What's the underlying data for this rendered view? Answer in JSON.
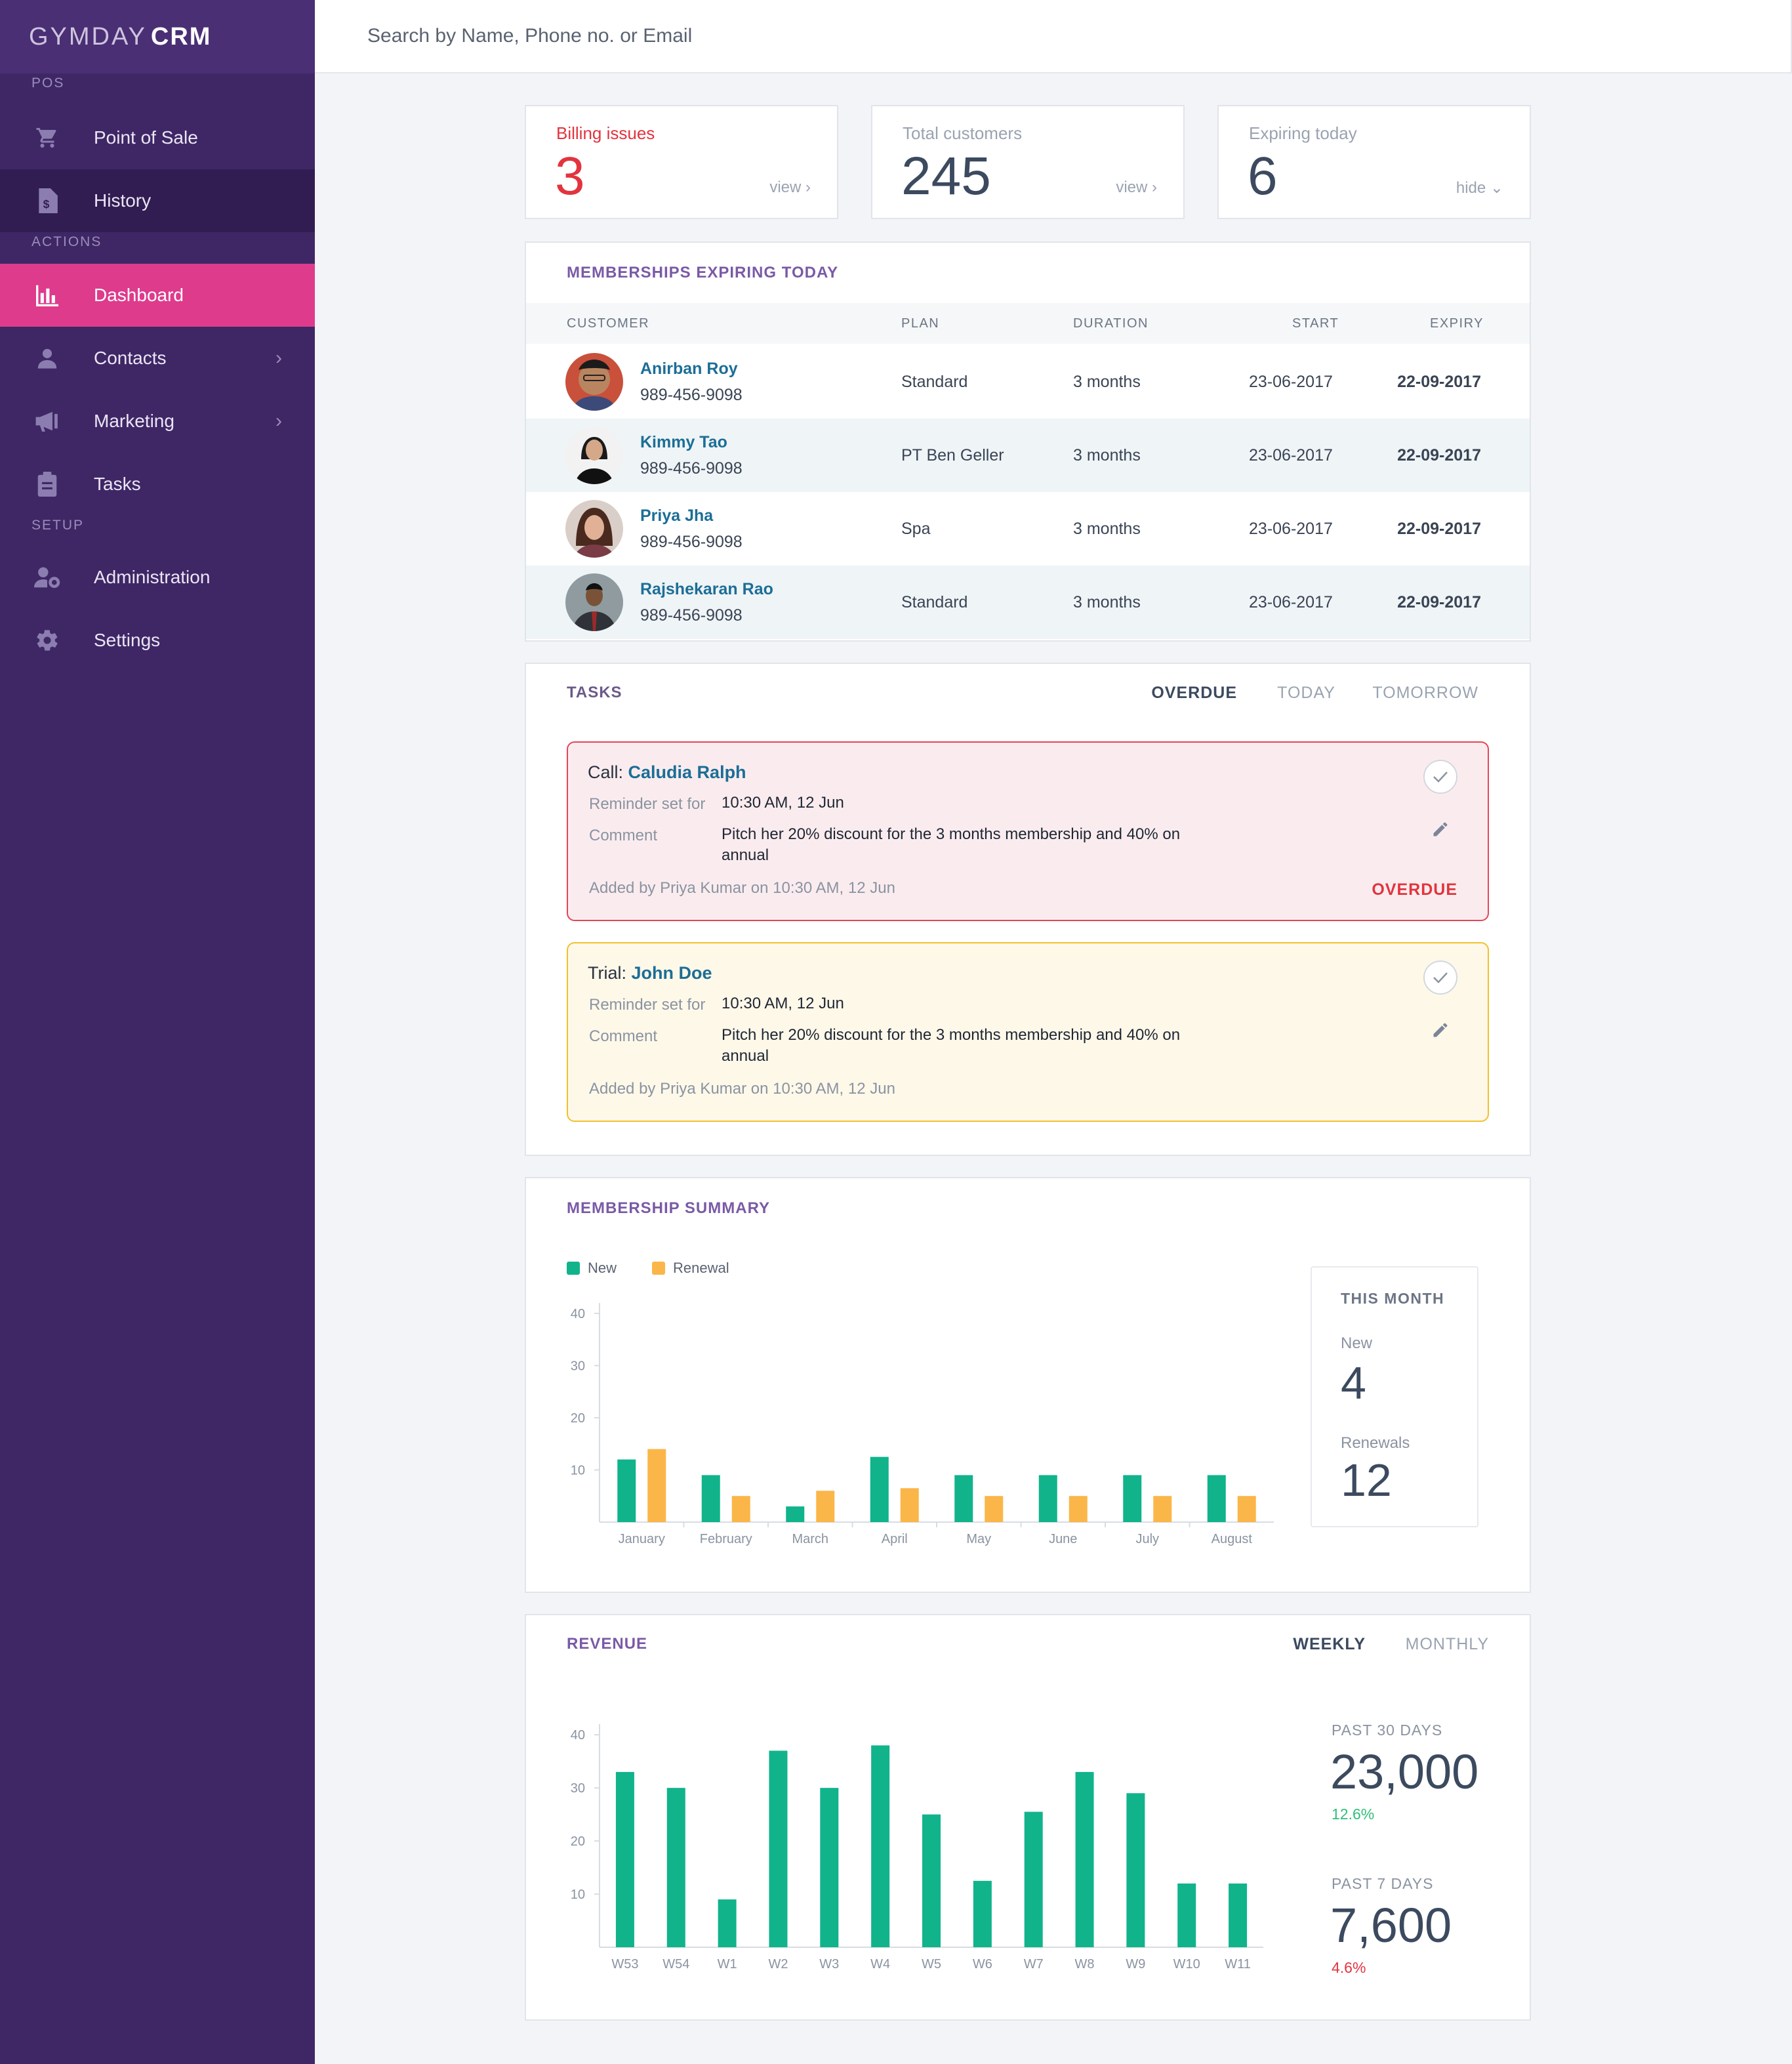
{
  "app": {
    "logo_light": "GYMDAY",
    "logo_bold": "CRM"
  },
  "sidebar": {
    "sections": [
      {
        "label": "POS"
      },
      {
        "label": "ACTIONS"
      },
      {
        "label": "SETUP"
      }
    ],
    "items": [
      {
        "label": "Point of Sale",
        "icon": "cart-icon"
      },
      {
        "label": "History",
        "icon": "receipt-icon"
      },
      {
        "label": "Dashboard",
        "icon": "bar-chart-icon"
      },
      {
        "label": "Contacts",
        "icon": "person-icon"
      },
      {
        "label": "Marketing",
        "icon": "megaphone-icon"
      },
      {
        "label": "Tasks",
        "icon": "clipboard-icon"
      },
      {
        "label": "Administration",
        "icon": "user-gear-icon"
      },
      {
        "label": "Settings",
        "icon": "gear-icon"
      }
    ],
    "active_item": "Dashboard"
  },
  "search": {
    "placeholder": "Search by Name, Phone no. or Email"
  },
  "stats": [
    {
      "label": "Billing issues",
      "value": "3",
      "action": "view",
      "color": "#e2343e"
    },
    {
      "label": "Total customers",
      "value": "245",
      "action": "view"
    },
    {
      "label": "Expiring today",
      "value": "6",
      "action": "hide"
    }
  ],
  "expiring": {
    "title": "MEMBERSHIPS EXPIRING TODAY",
    "columns": [
      "CUSTOMER",
      "PLAN",
      "DURATION",
      "START",
      "EXPIRY"
    ],
    "rows": [
      {
        "name": "Anirban Roy",
        "phone": "989-456-9098",
        "plan": "Standard",
        "duration": "3 months",
        "start": "23-06-2017",
        "expiry": "22-09-2017"
      },
      {
        "name": "Kimmy Tao",
        "phone": "989-456-9098",
        "plan": "PT Ben Geller",
        "duration": "3 months",
        "start": "23-06-2017",
        "expiry": "22-09-2017"
      },
      {
        "name": "Priya Jha",
        "phone": "989-456-9098",
        "plan": "Spa",
        "duration": "3 months",
        "start": "23-06-2017",
        "expiry": "22-09-2017"
      },
      {
        "name": "Rajshekaran Rao",
        "phone": "989-456-9098",
        "plan": "Standard",
        "duration": "3 months",
        "start": "23-06-2017",
        "expiry": "22-09-2017"
      }
    ]
  },
  "tasks": {
    "title": "TASKS",
    "tabs": [
      "OVERDUE",
      "TODAY",
      "TOMORROW"
    ],
    "active_tab": "OVERDUE",
    "items": [
      {
        "type": "Call:",
        "name": "Caludia Ralph",
        "reminder_label": "Reminder set for",
        "reminder": "10:30 AM, 12 Jun",
        "comment_label": "Comment",
        "comment": "Pitch her 20% discount for the 3 months membership and 40% on annual",
        "added": "Added by Priya Kumar on 10:30 AM, 12 Jun",
        "status": "OVERDUE"
      },
      {
        "type": "Trial:",
        "name": "John Doe",
        "reminder_label": "Reminder set for",
        "reminder": "10:30 AM, 12 Jun",
        "comment_label": "Comment",
        "comment": "Pitch her 20% discount for the 3 months membership and 40% on annual",
        "added": "Added by Priya Kumar on 10:30 AM, 12 Jun",
        "status": ""
      }
    ]
  },
  "membership_summary": {
    "title": "MEMBERSHIP SUMMARY",
    "this_month_label": "THIS MONTH",
    "new_label": "New",
    "new_value": "4",
    "renewals_label": "Renewals",
    "renewals_value": "12"
  },
  "revenue": {
    "title": "REVENUE",
    "tabs": [
      "WEEKLY",
      "MONTHLY"
    ],
    "active_tab": "WEEKLY",
    "past30_label": "PAST 30 DAYS",
    "past30_value": "23,000",
    "past30_change": "12.6%",
    "past7_label": "PAST 7 DAYS",
    "past7_value": "7,600",
    "past7_change": "4.6%"
  },
  "chart_data": [
    {
      "type": "bar",
      "categories": [
        "January",
        "February",
        "March",
        "April",
        "May",
        "June",
        "July",
        "August"
      ],
      "series": [
        {
          "name": "New",
          "values": [
            12,
            9,
            3,
            12.5,
            9,
            9,
            9,
            9
          ],
          "color": "#11b38b"
        },
        {
          "name": "Renewal",
          "values": [
            14,
            5,
            6,
            6.5,
            5,
            5,
            5,
            5
          ],
          "color": "#fbb649"
        }
      ],
      "yticks": [
        10,
        20,
        30,
        40
      ],
      "ylim": [
        0,
        42
      ],
      "legend": "top-left"
    },
    {
      "type": "bar",
      "categories": [
        "W53",
        "W54",
        "W1",
        "W2",
        "W3",
        "W4",
        "W5",
        "W6",
        "W7",
        "W8",
        "W9",
        "W10",
        "W11"
      ],
      "series": [
        {
          "values": [
            33,
            30,
            9,
            37,
            30,
            38,
            25,
            12.5,
            25.5,
            33,
            29,
            12,
            12
          ],
          "color": "#11b38b"
        }
      ],
      "yticks": [
        10,
        20,
        30,
        40
      ],
      "ylim": [
        0,
        42
      ]
    }
  ]
}
